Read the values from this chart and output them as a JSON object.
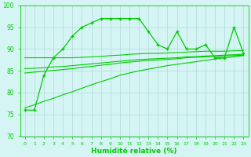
{
  "x": [
    0,
    1,
    2,
    3,
    4,
    5,
    6,
    7,
    8,
    9,
    10,
    11,
    12,
    13,
    14,
    15,
    16,
    17,
    18,
    19,
    20,
    21,
    22,
    23
  ],
  "main_line": [
    76,
    76,
    84,
    88,
    90,
    93,
    95,
    96,
    97,
    97,
    97,
    97,
    97,
    94,
    91,
    90,
    94,
    90,
    90,
    91,
    88,
    88,
    95,
    89
  ],
  "trend1": [
    88,
    88,
    88,
    88,
    88,
    88,
    88.1,
    88.2,
    88.3,
    88.5,
    88.6,
    88.8,
    88.9,
    89.0,
    89.0,
    89.1,
    89.2,
    89.3,
    89.4,
    89.5,
    89.5,
    89.5,
    89.6,
    89.7
  ],
  "trend2": [
    85.5,
    85.6,
    85.7,
    85.9,
    86.0,
    86.2,
    86.4,
    86.6,
    86.8,
    87.0,
    87.2,
    87.4,
    87.6,
    87.7,
    87.8,
    87.9,
    88.0,
    88.2,
    88.3,
    88.4,
    88.5,
    88.6,
    88.7,
    88.8
  ],
  "trend3": [
    84.5,
    84.7,
    84.9,
    85.1,
    85.3,
    85.5,
    85.8,
    86.0,
    86.3,
    86.5,
    86.8,
    87.0,
    87.2,
    87.4,
    87.5,
    87.6,
    87.8,
    88.0,
    88.1,
    88.2,
    88.3,
    88.4,
    88.5,
    88.6
  ],
  "trend4": [
    76.5,
    77.2,
    78.0,
    78.7,
    79.5,
    80.2,
    81.0,
    81.8,
    82.5,
    83.2,
    84.0,
    84.5,
    85.0,
    85.4,
    85.8,
    86.2,
    86.5,
    86.8,
    87.1,
    87.4,
    87.7,
    88.0,
    88.2,
    88.5
  ],
  "line_color": "#00cc00",
  "bg_color": "#d5f5f5",
  "grid_color": "#b0d8d8",
  "xlabel": "Humidité relative (%)",
  "ylim": [
    70,
    100
  ],
  "xlim_min": -0.5,
  "xlim_max": 23.5,
  "yticks": [
    70,
    75,
    80,
    85,
    90,
    95,
    100
  ],
  "xticks": [
    0,
    1,
    2,
    3,
    4,
    5,
    6,
    7,
    8,
    9,
    10,
    11,
    12,
    13,
    14,
    15,
    16,
    17,
    18,
    19,
    20,
    21,
    22,
    23
  ]
}
